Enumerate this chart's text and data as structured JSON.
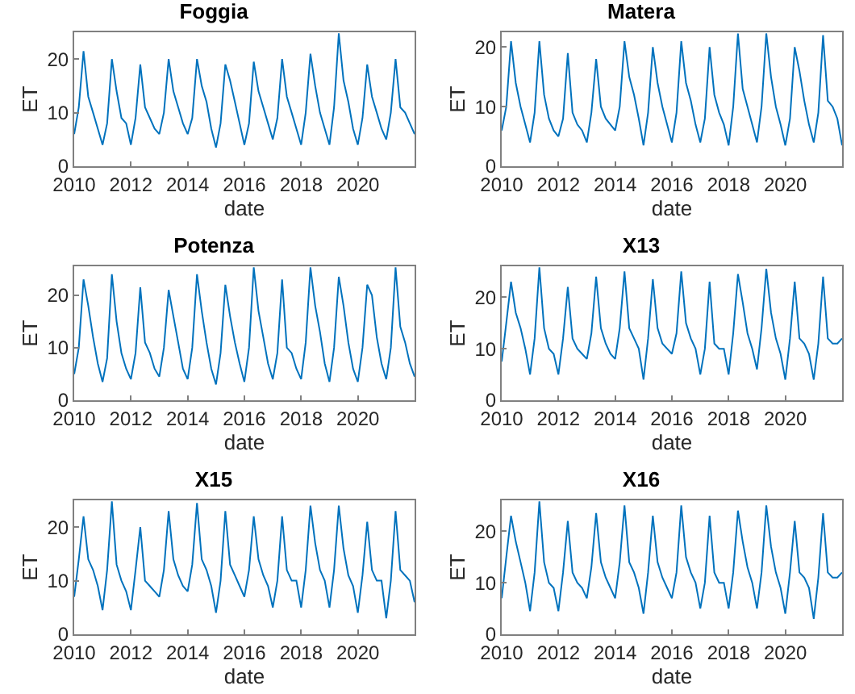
{
  "chart_data": [
    {
      "type": "line",
      "title": "Foggia",
      "xlabel": "date",
      "ylabel": "ET",
      "xlim": [
        "2010-01",
        "2022-01"
      ],
      "ylim": [
        0,
        25
      ],
      "yticks": [
        0,
        10,
        20
      ],
      "grid": false,
      "xticks": [
        {
          "value": "2010",
          "label": "2010"
        },
        {
          "value": "2012",
          "label": "2012"
        },
        {
          "value": "2014",
          "label": "2014"
        },
        {
          "value": "2016",
          "label": "2016"
        },
        {
          "value": "2018",
          "label": "2018"
        },
        {
          "value": "2020",
          "label": "2020"
        }
      ],
      "x": [
        "2010-01",
        "2010-03",
        "2010-05",
        "2010-07",
        "2010-09",
        "2010-11",
        "2011-01",
        "2011-03",
        "2011-05",
        "2011-07",
        "2011-09",
        "2011-11",
        "2012-01",
        "2012-03",
        "2012-05",
        "2012-07",
        "2012-09",
        "2012-11",
        "2013-01",
        "2013-03",
        "2013-05",
        "2013-07",
        "2013-09",
        "2013-11",
        "2014-01",
        "2014-03",
        "2014-05",
        "2014-07",
        "2014-09",
        "2014-11",
        "2015-01",
        "2015-03",
        "2015-05",
        "2015-07",
        "2015-09",
        "2015-11",
        "2016-01",
        "2016-03",
        "2016-05",
        "2016-07",
        "2016-09",
        "2016-11",
        "2017-01",
        "2017-03",
        "2017-05",
        "2017-07",
        "2017-09",
        "2017-11",
        "2018-01",
        "2018-03",
        "2018-05",
        "2018-07",
        "2018-09",
        "2018-11",
        "2019-01",
        "2019-03",
        "2019-05",
        "2019-07",
        "2019-09",
        "2019-11",
        "2020-01",
        "2020-03",
        "2020-05",
        "2020-07",
        "2020-09",
        "2020-11",
        "2021-01",
        "2021-03",
        "2021-05",
        "2021-07",
        "2021-09",
        "2021-11",
        "2022-01"
      ],
      "series": [
        {
          "color": "#0072bd",
          "values": [
            6,
            11,
            21.5,
            13,
            10,
            7,
            4,
            8,
            20,
            14,
            9,
            8,
            4,
            9,
            19,
            11,
            9,
            7,
            6,
            10,
            20,
            14,
            11,
            8,
            6,
            9,
            20,
            15,
            12,
            7,
            3.5,
            8,
            19,
            16,
            12,
            8,
            4,
            8,
            19.5,
            14,
            11,
            8,
            5,
            9,
            20,
            13,
            10,
            7,
            4,
            10,
            21,
            15,
            10,
            7,
            4,
            11,
            24.8,
            16,
            12,
            7,
            4,
            9,
            19,
            13,
            10,
            7,
            5,
            10,
            20,
            11,
            10,
            8,
            6
          ]
        }
      ]
    },
    {
      "type": "line",
      "title": "Matera",
      "xlabel": "date",
      "ylabel": "ET",
      "xlim": [
        "2010-01",
        "2022-01"
      ],
      "ylim": [
        0,
        22.5
      ],
      "yticks": [
        0,
        10,
        20
      ],
      "grid": false,
      "xticks": [
        {
          "value": "2010",
          "label": "2010"
        },
        {
          "value": "2012",
          "label": "2012"
        },
        {
          "value": "2014",
          "label": "2014"
        },
        {
          "value": "2016",
          "label": "2016"
        },
        {
          "value": "2018",
          "label": "2018"
        },
        {
          "value": "2020",
          "label": "2020"
        }
      ],
      "x": [
        "2010-01",
        "2010-03",
        "2010-05",
        "2010-07",
        "2010-09",
        "2010-11",
        "2011-01",
        "2011-03",
        "2011-05",
        "2011-07",
        "2011-09",
        "2011-11",
        "2012-01",
        "2012-03",
        "2012-05",
        "2012-07",
        "2012-09",
        "2012-11",
        "2013-01",
        "2013-03",
        "2013-05",
        "2013-07",
        "2013-09",
        "2013-11",
        "2014-01",
        "2014-03",
        "2014-05",
        "2014-07",
        "2014-09",
        "2014-11",
        "2015-01",
        "2015-03",
        "2015-05",
        "2015-07",
        "2015-09",
        "2015-11",
        "2016-01",
        "2016-03",
        "2016-05",
        "2016-07",
        "2016-09",
        "2016-11",
        "2017-01",
        "2017-03",
        "2017-05",
        "2017-07",
        "2017-09",
        "2017-11",
        "2018-01",
        "2018-03",
        "2018-05",
        "2018-07",
        "2018-09",
        "2018-11",
        "2019-01",
        "2019-03",
        "2019-05",
        "2019-07",
        "2019-09",
        "2019-11",
        "2020-01",
        "2020-03",
        "2020-05",
        "2020-07",
        "2020-09",
        "2020-11",
        "2021-01",
        "2021-03",
        "2021-05",
        "2021-07",
        "2021-09",
        "2021-11",
        "2022-01"
      ],
      "series": [
        {
          "color": "#0072bd",
          "values": [
            6,
            10,
            21,
            14,
            10,
            7,
            4,
            9,
            21,
            12,
            8,
            6,
            5,
            8,
            19,
            9,
            7,
            6,
            4,
            9,
            18,
            10,
            8,
            7,
            6,
            10,
            21,
            15,
            12,
            8,
            3.5,
            9,
            20,
            14,
            10,
            7,
            4,
            9,
            21,
            14,
            11,
            7,
            4,
            8,
            20,
            12,
            9,
            7,
            3.5,
            10,
            22.3,
            13,
            10,
            7,
            4,
            10,
            22.3,
            15,
            10,
            7,
            3.5,
            8,
            20,
            16,
            11,
            7,
            4,
            9,
            22,
            11,
            10,
            8,
            3.5
          ]
        }
      ]
    },
    {
      "type": "line",
      "title": "Potenza",
      "xlabel": "date",
      "ylabel": "ET",
      "xlim": [
        "2010-01",
        "2022-01"
      ],
      "ylim": [
        0,
        25.5
      ],
      "yticks": [
        0,
        10,
        20
      ],
      "grid": false,
      "xticks": [
        {
          "value": "2010",
          "label": "2010"
        },
        {
          "value": "2012",
          "label": "2012"
        },
        {
          "value": "2014",
          "label": "2014"
        },
        {
          "value": "2016",
          "label": "2016"
        },
        {
          "value": "2018",
          "label": "2018"
        },
        {
          "value": "2020",
          "label": "2020"
        }
      ],
      "x": [
        "2010-01",
        "2010-03",
        "2010-05",
        "2010-07",
        "2010-09",
        "2010-11",
        "2011-01",
        "2011-03",
        "2011-05",
        "2011-07",
        "2011-09",
        "2011-11",
        "2012-01",
        "2012-03",
        "2012-05",
        "2012-07",
        "2012-09",
        "2012-11",
        "2013-01",
        "2013-03",
        "2013-05",
        "2013-07",
        "2013-09",
        "2013-11",
        "2014-01",
        "2014-03",
        "2014-05",
        "2014-07",
        "2014-09",
        "2014-11",
        "2015-01",
        "2015-03",
        "2015-05",
        "2015-07",
        "2015-09",
        "2015-11",
        "2016-01",
        "2016-03",
        "2016-05",
        "2016-07",
        "2016-09",
        "2016-11",
        "2017-01",
        "2017-03",
        "2017-05",
        "2017-07",
        "2017-09",
        "2017-11",
        "2018-01",
        "2018-03",
        "2018-05",
        "2018-07",
        "2018-09",
        "2018-11",
        "2019-01",
        "2019-03",
        "2019-05",
        "2019-07",
        "2019-09",
        "2019-11",
        "2020-01",
        "2020-03",
        "2020-05",
        "2020-07",
        "2020-09",
        "2020-11",
        "2021-01",
        "2021-03",
        "2021-05",
        "2021-07",
        "2021-09",
        "2021-11",
        "2022-01"
      ],
      "series": [
        {
          "color": "#0072bd",
          "values": [
            5,
            10,
            23,
            18,
            12,
            7,
            3.5,
            8,
            24,
            15,
            9,
            6,
            4,
            9,
            21.5,
            11,
            9,
            6,
            4.5,
            10,
            21,
            16,
            11,
            6,
            4,
            10,
            24,
            17,
            11,
            6,
            3,
            9,
            22,
            16,
            11,
            7,
            3.5,
            10,
            25.3,
            17,
            12,
            7,
            4,
            9,
            23,
            10,
            9,
            6,
            4,
            11,
            25.3,
            18,
            13,
            7,
            3.5,
            10,
            23.5,
            18,
            11,
            6,
            3.5,
            10,
            22,
            20,
            12,
            7,
            4,
            10,
            25.3,
            14,
            11,
            7,
            4.5
          ]
        }
      ]
    },
    {
      "type": "line",
      "title": "X13",
      "xlabel": "date",
      "ylabel": "ET",
      "xlim": [
        "2010-01",
        "2022-01"
      ],
      "ylim": [
        0,
        26
      ],
      "yticks": [
        0,
        10,
        20
      ],
      "grid": false,
      "xticks": [
        {
          "value": "2010",
          "label": "2010"
        },
        {
          "value": "2012",
          "label": "2012"
        },
        {
          "value": "2014",
          "label": "2014"
        },
        {
          "value": "2016",
          "label": "2016"
        },
        {
          "value": "2018",
          "label": "2018"
        },
        {
          "value": "2020",
          "label": "2020"
        }
      ],
      "x": [
        "2010-01",
        "2010-03",
        "2010-05",
        "2010-07",
        "2010-09",
        "2010-11",
        "2011-01",
        "2011-03",
        "2011-05",
        "2011-07",
        "2011-09",
        "2011-11",
        "2012-01",
        "2012-03",
        "2012-05",
        "2012-07",
        "2012-09",
        "2012-11",
        "2013-01",
        "2013-03",
        "2013-05",
        "2013-07",
        "2013-09",
        "2013-11",
        "2014-01",
        "2014-03",
        "2014-05",
        "2014-07",
        "2014-09",
        "2014-11",
        "2015-01",
        "2015-03",
        "2015-05",
        "2015-07",
        "2015-09",
        "2015-11",
        "2016-01",
        "2016-03",
        "2016-05",
        "2016-07",
        "2016-09",
        "2016-11",
        "2017-01",
        "2017-03",
        "2017-05",
        "2017-07",
        "2017-09",
        "2017-11",
        "2018-01",
        "2018-03",
        "2018-05",
        "2018-07",
        "2018-09",
        "2018-11",
        "2019-01",
        "2019-03",
        "2019-05",
        "2019-07",
        "2019-09",
        "2019-11",
        "2020-01",
        "2020-03",
        "2020-05",
        "2020-07",
        "2020-09",
        "2020-11",
        "2021-01",
        "2021-03",
        "2021-05",
        "2021-07",
        "2021-09",
        "2021-11",
        "2022-01"
      ],
      "series": [
        {
          "color": "#0072bd",
          "values": [
            7.5,
            15,
            23,
            17,
            14,
            10,
            5,
            12,
            25.8,
            14,
            10,
            9,
            5,
            12,
            22,
            12,
            10,
            9,
            8,
            13,
            24,
            14,
            11,
            9,
            8,
            14,
            25,
            14,
            12,
            10,
            4,
            12,
            23.5,
            14,
            11,
            10,
            9,
            13,
            25,
            15,
            12,
            10,
            5,
            10,
            23,
            11,
            10,
            10,
            5,
            13,
            24.5,
            19,
            13,
            10,
            6,
            14,
            25.5,
            17,
            12,
            9,
            4,
            12,
            23,
            12,
            11,
            9,
            4,
            11,
            24,
            12,
            11,
            11,
            12
          ]
        }
      ]
    },
    {
      "type": "line",
      "title": "X15",
      "xlabel": "date",
      "ylabel": "ET",
      "xlim": [
        "2010-01",
        "2022-01"
      ],
      "ylim": [
        0,
        25
      ],
      "yticks": [
        0,
        10,
        20
      ],
      "grid": false,
      "xticks": [
        {
          "value": "2010",
          "label": "2010"
        },
        {
          "value": "2012",
          "label": "2012"
        },
        {
          "value": "2014",
          "label": "2014"
        },
        {
          "value": "2016",
          "label": "2016"
        },
        {
          "value": "2018",
          "label": "2018"
        },
        {
          "value": "2020",
          "label": "2020"
        }
      ],
      "x": [
        "2010-01",
        "2010-03",
        "2010-05",
        "2010-07",
        "2010-09",
        "2010-11",
        "2011-01",
        "2011-03",
        "2011-05",
        "2011-07",
        "2011-09",
        "2011-11",
        "2012-01",
        "2012-03",
        "2012-05",
        "2012-07",
        "2012-09",
        "2012-11",
        "2013-01",
        "2013-03",
        "2013-05",
        "2013-07",
        "2013-09",
        "2013-11",
        "2014-01",
        "2014-03",
        "2014-05",
        "2014-07",
        "2014-09",
        "2014-11",
        "2015-01",
        "2015-03",
        "2015-05",
        "2015-07",
        "2015-09",
        "2015-11",
        "2016-01",
        "2016-03",
        "2016-05",
        "2016-07",
        "2016-09",
        "2016-11",
        "2017-01",
        "2017-03",
        "2017-05",
        "2017-07",
        "2017-09",
        "2017-11",
        "2018-01",
        "2018-03",
        "2018-05",
        "2018-07",
        "2018-09",
        "2018-11",
        "2019-01",
        "2019-03",
        "2019-05",
        "2019-07",
        "2019-09",
        "2019-11",
        "2020-01",
        "2020-03",
        "2020-05",
        "2020-07",
        "2020-09",
        "2020-11",
        "2021-01",
        "2021-03",
        "2021-05",
        "2021-07",
        "2021-09",
        "2021-11",
        "2022-01"
      ],
      "series": [
        {
          "color": "#0072bd",
          "values": [
            7,
            14,
            22,
            14,
            12,
            9,
            4.5,
            12,
            24.8,
            13,
            10,
            8,
            4.5,
            12,
            20,
            10,
            9,
            8,
            7,
            12,
            23,
            14,
            11,
            9,
            8,
            13,
            24.5,
            14,
            12,
            9,
            4,
            10,
            23,
            13,
            11,
            9,
            7,
            12,
            22,
            14,
            11,
            9,
            5,
            10,
            22,
            12,
            10,
            10,
            5,
            12,
            24,
            17,
            12,
            10,
            5,
            12,
            24,
            16,
            11,
            9,
            4,
            11,
            21,
            12,
            10,
            10,
            3,
            10,
            23,
            12,
            11,
            10,
            6
          ]
        }
      ]
    },
    {
      "type": "line",
      "title": "X16",
      "xlabel": "date",
      "ylabel": "ET",
      "xlim": [
        "2010-01",
        "2022-01"
      ],
      "ylim": [
        0,
        26
      ],
      "yticks": [
        0,
        10,
        20
      ],
      "grid": false,
      "xticks": [
        {
          "value": "2010",
          "label": "2010"
        },
        {
          "value": "2012",
          "label": "2012"
        },
        {
          "value": "2014",
          "label": "2014"
        },
        {
          "value": "2016",
          "label": "2016"
        },
        {
          "value": "2018",
          "label": "2018"
        },
        {
          "value": "2020",
          "label": "2020"
        }
      ],
      "x": [
        "2010-01",
        "2010-03",
        "2010-05",
        "2010-07",
        "2010-09",
        "2010-11",
        "2011-01",
        "2011-03",
        "2011-05",
        "2011-07",
        "2011-09",
        "2011-11",
        "2012-01",
        "2012-03",
        "2012-05",
        "2012-07",
        "2012-09",
        "2012-11",
        "2013-01",
        "2013-03",
        "2013-05",
        "2013-07",
        "2013-09",
        "2013-11",
        "2014-01",
        "2014-03",
        "2014-05",
        "2014-07",
        "2014-09",
        "2014-11",
        "2015-01",
        "2015-03",
        "2015-05",
        "2015-07",
        "2015-09",
        "2015-11",
        "2016-01",
        "2016-03",
        "2016-05",
        "2016-07",
        "2016-09",
        "2016-11",
        "2017-01",
        "2017-03",
        "2017-05",
        "2017-07",
        "2017-09",
        "2017-11",
        "2018-01",
        "2018-03",
        "2018-05",
        "2018-07",
        "2018-09",
        "2018-11",
        "2019-01",
        "2019-03",
        "2019-05",
        "2019-07",
        "2019-09",
        "2019-11",
        "2020-01",
        "2020-03",
        "2020-05",
        "2020-07",
        "2020-09",
        "2020-11",
        "2021-01",
        "2021-03",
        "2021-05",
        "2021-07",
        "2021-09",
        "2021-11",
        "2022-01"
      ],
      "series": [
        {
          "color": "#0072bd",
          "values": [
            7,
            15,
            23,
            18,
            14,
            10,
            4.5,
            12,
            25.8,
            14,
            10,
            9,
            4.5,
            12,
            22,
            12,
            10,
            9,
            7,
            13,
            23.5,
            14,
            11,
            9,
            7,
            14,
            25,
            14,
            12,
            9,
            4,
            12,
            23,
            14,
            11,
            9,
            7,
            12,
            25,
            15,
            12,
            10,
            5,
            10,
            23,
            12,
            10,
            10,
            5,
            12,
            24,
            18,
            13,
            10,
            5,
            12,
            25,
            17,
            12,
            9,
            4,
            12,
            22,
            12,
            11,
            9,
            3,
            11,
            23.5,
            12,
            11,
            11,
            12
          ]
        }
      ]
    }
  ]
}
